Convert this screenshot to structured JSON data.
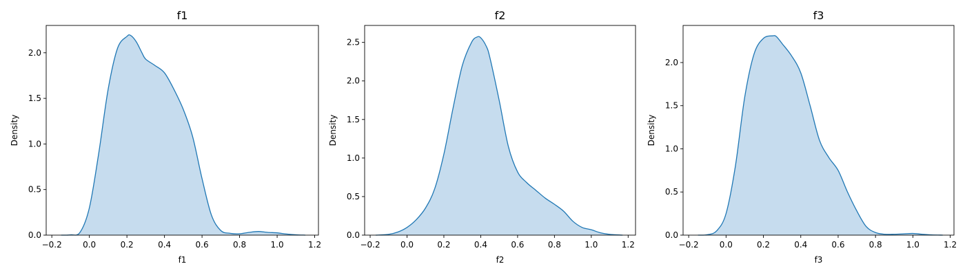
{
  "chart_data": [
    {
      "type": "area",
      "title": "f1",
      "xlabel": "f1",
      "ylabel": "Density",
      "xlim": [
        -0.23,
        1.22
      ],
      "ylim": [
        0,
        2.3
      ],
      "xticks": [
        -0.2,
        0.0,
        0.2,
        0.4,
        0.6,
        0.8,
        1.0,
        1.2
      ],
      "xtick_labels": [
        "−0.2",
        "0.0",
        "0.2",
        "0.4",
        "0.6",
        "0.8",
        "1.0",
        "1.2"
      ],
      "yticks": [
        0.0,
        0.5,
        1.0,
        1.5,
        2.0
      ],
      "ytick_labels": [
        "0.0",
        "0.5",
        "1.0",
        "1.5",
        "2.0"
      ],
      "grid": false,
      "color": "#1f77b4",
      "fill_color": "#c6dcee",
      "x": [
        -0.15,
        -0.1,
        -0.05,
        0.0,
        0.05,
        0.1,
        0.15,
        0.2,
        0.22,
        0.25,
        0.28,
        0.3,
        0.35,
        0.4,
        0.45,
        0.5,
        0.55,
        0.6,
        0.65,
        0.7,
        0.75,
        0.8,
        0.85,
        0.9,
        0.95,
        1.0,
        1.05,
        1.1,
        1.15
      ],
      "y": [
        0.0,
        0.003,
        0.03,
        0.3,
        0.9,
        1.6,
        2.05,
        2.18,
        2.19,
        2.12,
        2.0,
        1.93,
        1.86,
        1.78,
        1.6,
        1.38,
        1.08,
        0.62,
        0.22,
        0.05,
        0.02,
        0.015,
        0.03,
        0.04,
        0.03,
        0.025,
        0.012,
        0.004,
        0.0
      ]
    },
    {
      "type": "area",
      "title": "f2",
      "xlabel": "f2",
      "ylabel": "Density",
      "xlim": [
        -0.23,
        1.24
      ],
      "ylim": [
        0,
        2.72
      ],
      "xticks": [
        -0.2,
        0.0,
        0.2,
        0.4,
        0.6,
        0.8,
        1.0,
        1.2
      ],
      "xtick_labels": [
        "−0.2",
        "0.0",
        "0.2",
        "0.4",
        "0.6",
        "0.8",
        "1.0",
        "1.2"
      ],
      "yticks": [
        0.0,
        0.5,
        1.0,
        1.5,
        2.0,
        2.5
      ],
      "ytick_labels": [
        "0.0",
        "0.5",
        "1.0",
        "1.5",
        "2.0",
        "2.5"
      ],
      "grid": false,
      "color": "#1f77b4",
      "fill_color": "#c6dcee",
      "x": [
        -0.17,
        -0.1,
        -0.05,
        0.0,
        0.05,
        0.1,
        0.15,
        0.2,
        0.25,
        0.3,
        0.35,
        0.38,
        0.4,
        0.43,
        0.45,
        0.5,
        0.55,
        0.6,
        0.65,
        0.7,
        0.75,
        0.8,
        0.85,
        0.9,
        0.95,
        1.0,
        1.05,
        1.1,
        1.17
      ],
      "y": [
        0.0,
        0.01,
        0.04,
        0.1,
        0.2,
        0.35,
        0.6,
        1.05,
        1.65,
        2.2,
        2.5,
        2.57,
        2.56,
        2.45,
        2.3,
        1.75,
        1.15,
        0.82,
        0.68,
        0.58,
        0.48,
        0.4,
        0.31,
        0.18,
        0.1,
        0.07,
        0.03,
        0.01,
        0.0
      ]
    },
    {
      "type": "area",
      "title": "f3",
      "xlabel": "f3",
      "ylabel": "Density",
      "xlim": [
        -0.23,
        1.22
      ],
      "ylim": [
        0,
        2.43
      ],
      "xticks": [
        -0.2,
        0.0,
        0.2,
        0.4,
        0.6,
        0.8,
        1.0,
        1.2
      ],
      "xtick_labels": [
        "−0.2",
        "0.0",
        "0.2",
        "0.4",
        "0.6",
        "0.8",
        "1.0",
        "1.2"
      ],
      "yticks": [
        0.0,
        0.5,
        1.0,
        1.5,
        2.0
      ],
      "ytick_labels": [
        "0.0",
        "0.5",
        "1.0",
        "1.5",
        "2.0"
      ],
      "grid": false,
      "color": "#1f77b4",
      "fill_color": "#c6dcee",
      "x": [
        -0.15,
        -0.1,
        -0.05,
        0.0,
        0.05,
        0.1,
        0.15,
        0.2,
        0.25,
        0.27,
        0.3,
        0.35,
        0.4,
        0.45,
        0.5,
        0.55,
        0.6,
        0.65,
        0.7,
        0.75,
        0.8,
        0.85,
        0.9,
        0.95,
        1.0,
        1.05,
        1.1,
        1.16
      ],
      "y": [
        0.0,
        0.005,
        0.05,
        0.25,
        0.8,
        1.6,
        2.1,
        2.28,
        2.31,
        2.3,
        2.22,
        2.08,
        1.88,
        1.5,
        1.1,
        0.9,
        0.75,
        0.5,
        0.28,
        0.1,
        0.03,
        0.01,
        0.01,
        0.015,
        0.02,
        0.01,
        0.003,
        0.0
      ]
    }
  ]
}
